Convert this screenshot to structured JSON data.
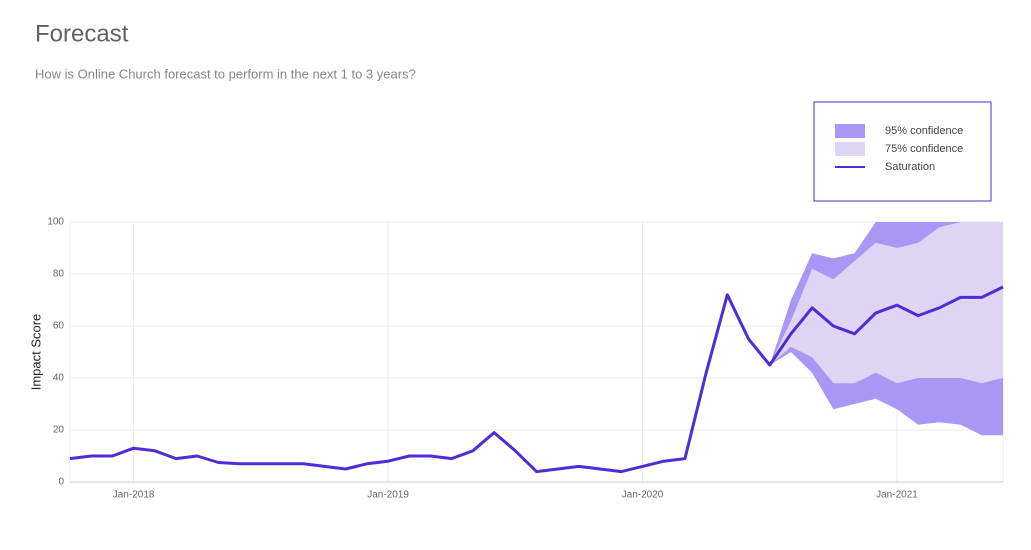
{
  "chart_data": {
    "type": "forecast",
    "title": "Forecast",
    "subtitle": "How is Online Church forecast to perform in the next 1 to 3 years?",
    "y_label": "Impact Score",
    "x": [
      "2017-10",
      "2017-11",
      "2017-12",
      "2018-01",
      "2018-02",
      "2018-03",
      "2018-04",
      "2018-05",
      "2018-06",
      "2018-07",
      "2018-08",
      "2018-09",
      "2018-10",
      "2018-11",
      "2018-12",
      "2019-01",
      "2019-02",
      "2019-03",
      "2019-04",
      "2019-05",
      "2019-06",
      "2019-07",
      "2019-08",
      "2019-09",
      "2019-10",
      "2019-11",
      "2019-12",
      "2020-01",
      "2020-02",
      "2020-03",
      "2020-04",
      "2020-05",
      "2020-06",
      "2020-07",
      "2020-08",
      "2020-09",
      "2020-10",
      "2020-11",
      "2020-12",
      "2021-01",
      "2021-02",
      "2021-03",
      "2021-04",
      "2021-05",
      "2021-06"
    ],
    "xlim": [
      "2017-10",
      "2021-06"
    ],
    "xticks": [
      {
        "value": "2018-01",
        "label": "Jan-2018"
      },
      {
        "value": "2019-01",
        "label": "Jan-2019"
      },
      {
        "value": "2020-01",
        "label": "Jan-2020"
      },
      {
        "value": "2021-01",
        "label": "Jan-2021"
      }
    ],
    "ylim": [
      0,
      100
    ],
    "yticks": [
      0,
      20,
      40,
      60,
      80,
      100
    ],
    "grid": true,
    "bands": [
      {
        "name": "95% confidence",
        "color": "#a897f4",
        "upper": [
          null,
          null,
          null,
          null,
          null,
          null,
          null,
          null,
          null,
          null,
          null,
          null,
          null,
          null,
          null,
          null,
          null,
          null,
          null,
          null,
          null,
          null,
          null,
          null,
          null,
          null,
          null,
          null,
          null,
          null,
          null,
          null,
          null,
          45,
          70,
          88,
          86,
          88,
          100,
          100,
          100,
          100,
          100,
          100,
          100
        ],
        "lower": [
          null,
          null,
          null,
          null,
          null,
          null,
          null,
          null,
          null,
          null,
          null,
          null,
          null,
          null,
          null,
          null,
          null,
          null,
          null,
          null,
          null,
          null,
          null,
          null,
          null,
          null,
          null,
          null,
          null,
          null,
          null,
          null,
          null,
          45,
          50,
          42,
          28,
          30,
          32,
          28,
          22,
          23,
          22,
          18,
          18
        ]
      },
      {
        "name": "75% confidence",
        "color": "#ddd5f3",
        "upper": [
          null,
          null,
          null,
          null,
          null,
          null,
          null,
          null,
          null,
          null,
          null,
          null,
          null,
          null,
          null,
          null,
          null,
          null,
          null,
          null,
          null,
          null,
          null,
          null,
          null,
          null,
          null,
          null,
          null,
          null,
          null,
          null,
          null,
          45,
          62,
          82,
          78,
          85,
          92,
          90,
          92,
          98,
          100,
          100,
          100
        ],
        "lower": [
          null,
          null,
          null,
          null,
          null,
          null,
          null,
          null,
          null,
          null,
          null,
          null,
          null,
          null,
          null,
          null,
          null,
          null,
          null,
          null,
          null,
          null,
          null,
          null,
          null,
          null,
          null,
          null,
          null,
          null,
          null,
          null,
          null,
          45,
          52,
          48,
          38,
          38,
          42,
          38,
          40,
          40,
          40,
          38,
          40
        ]
      }
    ],
    "series": [
      {
        "name": "Saturation",
        "color": "#4f2dd6",
        "values": [
          9,
          10,
          10,
          13,
          12,
          9,
          10,
          7.5,
          7,
          7,
          7,
          7,
          6,
          5,
          7,
          8,
          10,
          10,
          9,
          12,
          19,
          12,
          4,
          5,
          6,
          5,
          4,
          6,
          8,
          9,
          42,
          72,
          55,
          45,
          57,
          67,
          60,
          57,
          65,
          68,
          64,
          67,
          71,
          71,
          75
        ]
      }
    ]
  }
}
